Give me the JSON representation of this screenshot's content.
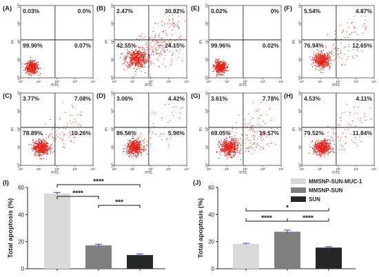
{
  "chart_data": [
    {
      "type": "scatter",
      "id": "A",
      "label": "(A)",
      "xlabel": "FITC",
      "ylabel": "PI",
      "xscale": "log",
      "yscale": "log",
      "xlim": [
        1,
        10000
      ],
      "ylim": [
        1,
        10000
      ],
      "xticks": [
        "10⁰",
        "10¹",
        "10²",
        "10³",
        "10⁴"
      ],
      "yticks": [
        "10⁰",
        "10¹",
        "10²",
        "10³",
        "10⁴"
      ],
      "quadrants": {
        "upper_left": "0.03%",
        "upper_right": "0.0%",
        "lower_left": "99.90%",
        "lower_right": "0.07%"
      }
    },
    {
      "type": "scatter",
      "id": "B",
      "label": "(B)",
      "xlabel": "FITC",
      "ylabel": "PI",
      "xscale": "log",
      "yscale": "log",
      "xlim": [
        1,
        10000
      ],
      "ylim": [
        1,
        10000
      ],
      "xticks": [
        "10⁰",
        "10¹",
        "10²",
        "10³",
        "10⁴"
      ],
      "yticks": [
        "10⁰",
        "10¹",
        "10²",
        "10³",
        "10⁴"
      ],
      "quadrants": {
        "upper_left": "2.47%",
        "upper_right": "30.82%",
        "lower_left": "42.55%",
        "lower_right": "24.15%"
      }
    },
    {
      "type": "scatter",
      "id": "E",
      "label": "(E)",
      "xlabel": "FITC",
      "ylabel": "PI",
      "xscale": "log",
      "yscale": "log",
      "xlim": [
        1,
        10000
      ],
      "ylim": [
        1,
        10000
      ],
      "xticks": [
        "10⁰",
        "10¹",
        "10²",
        "10³",
        "10⁴"
      ],
      "yticks": [
        "10⁰",
        "10¹",
        "10²",
        "10³",
        "10⁴"
      ],
      "quadrants": {
        "upper_left": "0.02%",
        "upper_right": "0%",
        "lower_left": "99.96%",
        "lower_right": "0.02%"
      }
    },
    {
      "type": "scatter",
      "id": "F",
      "label": "(F)",
      "xlabel": "FITC",
      "ylabel": "PI",
      "xscale": "log",
      "yscale": "log",
      "xlim": [
        1,
        10000
      ],
      "ylim": [
        1,
        10000
      ],
      "xticks": [
        "10⁰",
        "10¹",
        "10²",
        "10³",
        "10⁴"
      ],
      "yticks": [
        "10⁰",
        "10¹",
        "10²",
        "10³",
        "10⁴"
      ],
      "quadrants": {
        "upper_left": "5.54%",
        "upper_right": "4.87%",
        "lower_left": "76.94%",
        "lower_right": "12.65%"
      }
    },
    {
      "type": "scatter",
      "id": "C",
      "label": "(C)",
      "xlabel": "FITC",
      "ylabel": "PI",
      "xscale": "log",
      "yscale": "log",
      "xlim": [
        1,
        10000
      ],
      "ylim": [
        1,
        10000
      ],
      "xticks": [
        "10⁰",
        "10¹",
        "10²",
        "10³",
        "10⁴"
      ],
      "yticks": [
        "10⁰",
        "10¹",
        "10²",
        "10³",
        "10⁴"
      ],
      "quadrants": {
        "upper_left": "3.77%",
        "upper_right": "7.08%",
        "lower_left": "78.89%",
        "lower_right": "10.26%"
      }
    },
    {
      "type": "scatter",
      "id": "D",
      "label": "(D)",
      "xlabel": "FITC",
      "ylabel": "PI",
      "xscale": "log",
      "yscale": "log",
      "xlim": [
        1,
        10000
      ],
      "ylim": [
        1,
        10000
      ],
      "xticks": [
        "10⁰",
        "10¹",
        "10²",
        "10³",
        "10⁴"
      ],
      "yticks": [
        "10⁰",
        "10¹",
        "10²",
        "10³",
        "10⁴"
      ],
      "quadrants": {
        "upper_left": "3.06%",
        "upper_right": "4.42%",
        "lower_left": "86.56%",
        "lower_right": "5.96%"
      }
    },
    {
      "type": "scatter",
      "id": "G",
      "label": "(G)",
      "xlabel": "FITC",
      "ylabel": "PI",
      "xscale": "log",
      "yscale": "log",
      "xlim": [
        1,
        10000
      ],
      "ylim": [
        1,
        10000
      ],
      "xticks": [
        "10⁰",
        "10¹",
        "10²",
        "10³",
        "10⁴"
      ],
      "yticks": [
        "10⁰",
        "10¹",
        "10²",
        "10³",
        "10⁴"
      ],
      "quadrants": {
        "upper_left": "3.61%",
        "upper_right": "7.78%",
        "lower_left": "69.05%",
        "lower_right": "19.57%"
      }
    },
    {
      "type": "scatter",
      "id": "H",
      "label": "(H)",
      "xlabel": "FITC",
      "ylabel": "PI",
      "xscale": "log",
      "yscale": "log",
      "xlim": [
        1,
        10000
      ],
      "ylim": [
        1,
        10000
      ],
      "xticks": [
        "10⁰",
        "10¹",
        "10²",
        "10³",
        "10⁴"
      ],
      "yticks": [
        "10⁰",
        "10¹",
        "10²",
        "10³",
        "10⁴"
      ],
      "quadrants": {
        "upper_left": "4.53%",
        "upper_right": "4.11%",
        "lower_left": "79.52%",
        "lower_right": "11.84%"
      }
    },
    {
      "type": "bar",
      "id": "I",
      "label": "(I)",
      "ylabel": "Total apoptosis (%)",
      "ylim": [
        0,
        60
      ],
      "yticks": [
        0,
        20,
        40,
        60
      ],
      "categories": [
        "MMSNP-SUN-MUC-1",
        "MMSNP-SUN",
        "SUN"
      ],
      "values": [
        55.5,
        17.2,
        10.1
      ],
      "errors": [
        0.8,
        0.9,
        0.8
      ],
      "colors": [
        "#d9d9d9",
        "#7f7f7f",
        "#262626"
      ],
      "significance": [
        {
          "pair": [
            0,
            2
          ],
          "label": "****"
        },
        {
          "pair": [
            0,
            1
          ],
          "label": "****"
        },
        {
          "pair": [
            1,
            2
          ],
          "label": "***"
        }
      ]
    },
    {
      "type": "bar",
      "id": "J",
      "label": "(J)",
      "ylabel": "Total apoptosis (%)",
      "ylim": [
        0,
        60
      ],
      "yticks": [
        0,
        20,
        40,
        60
      ],
      "categories": [
        "MMSNP-SUN-MUC-1",
        "MMSNP-SUN",
        "SUN"
      ],
      "values": [
        18.3,
        27.3,
        15.6
      ],
      "errors": [
        0.5,
        1.2,
        0.7
      ],
      "colors": [
        "#d9d9d9",
        "#7f7f7f",
        "#262626"
      ],
      "legend": "top-right",
      "series_names": [
        "MMSNP-SUN-MUC-1",
        "MMSNP-SUN",
        "SUN"
      ],
      "significance": [
        {
          "pair": [
            0,
            2
          ],
          "label": "*"
        },
        {
          "pair": [
            0,
            1
          ],
          "label": "****"
        },
        {
          "pair": [
            1,
            2
          ],
          "label": "****"
        }
      ]
    }
  ]
}
